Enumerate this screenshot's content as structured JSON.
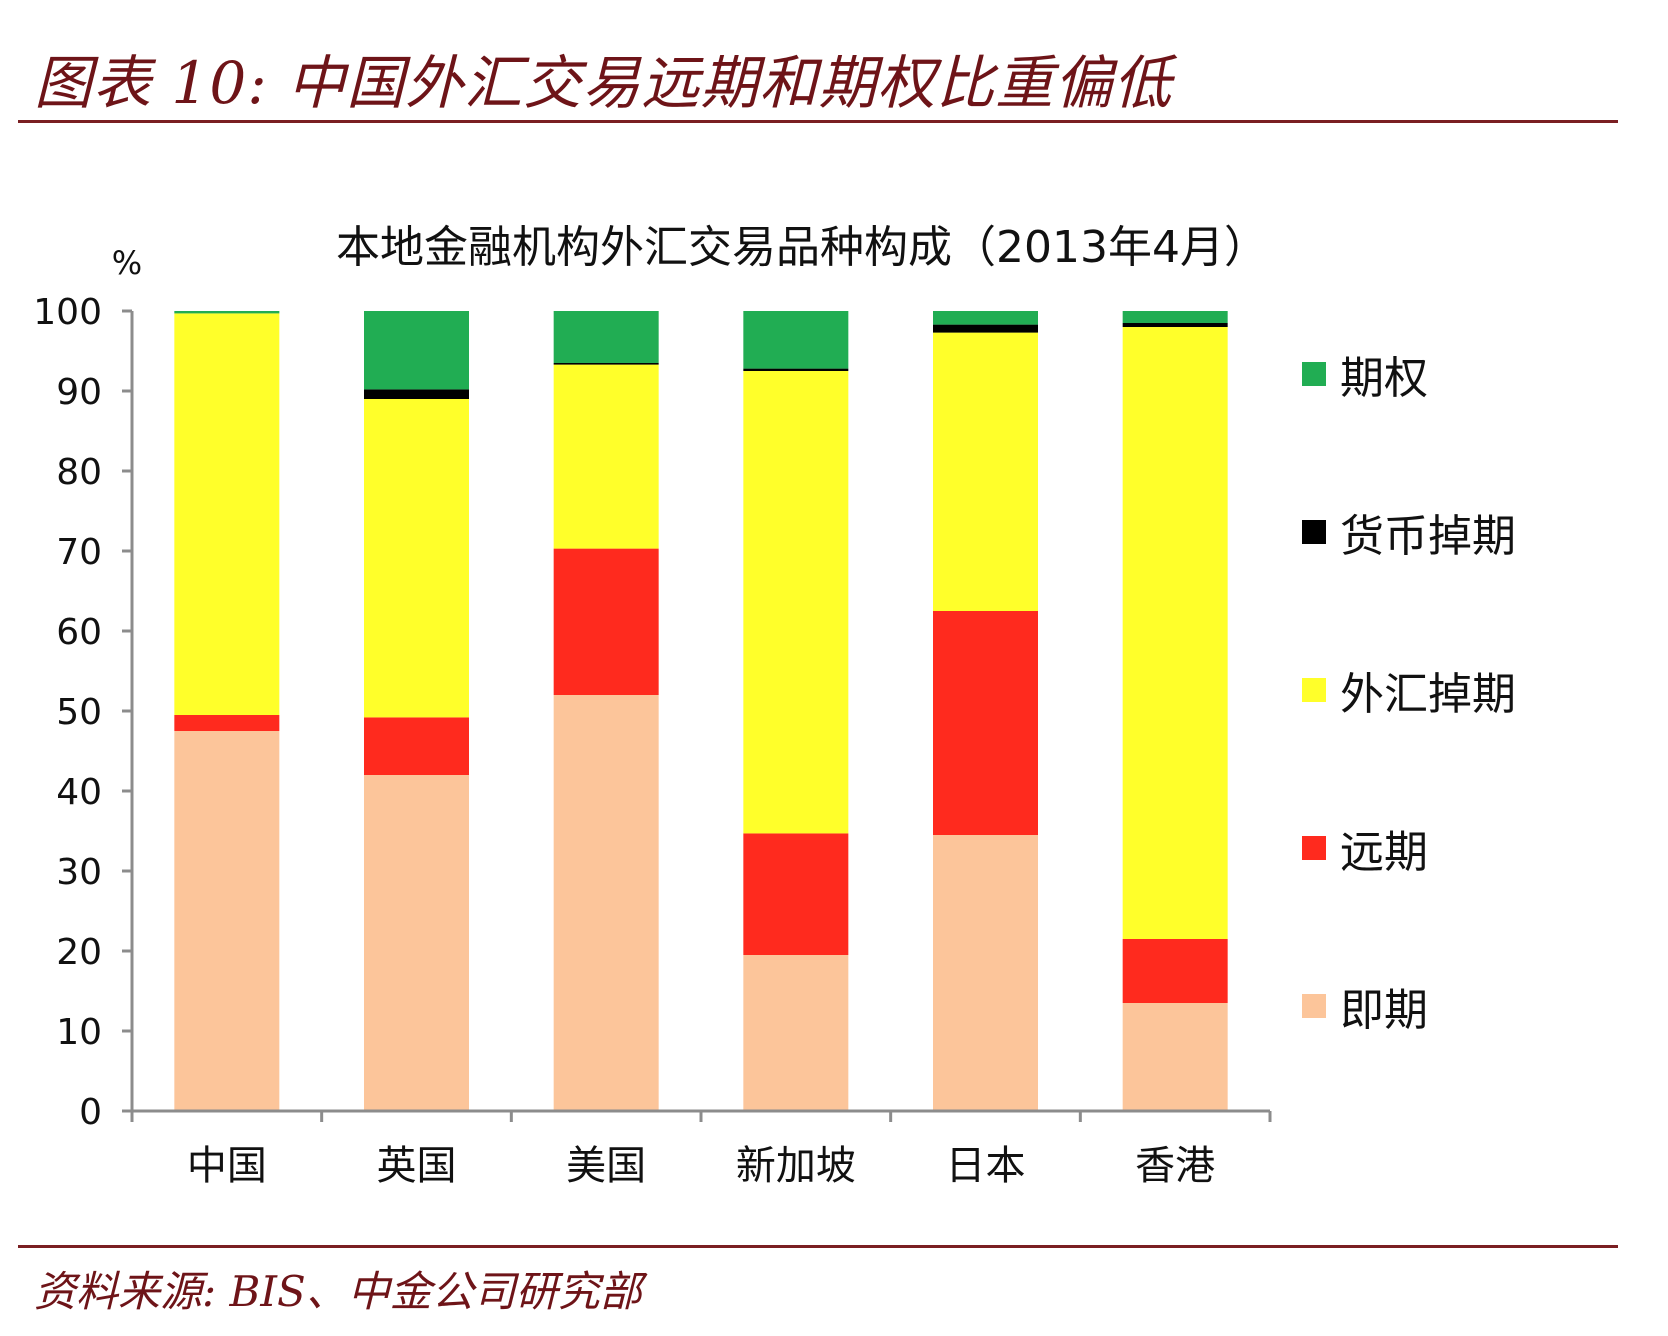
{
  "figure": {
    "title": "图表 10:  中国外汇交易远期和期权比重偏低",
    "source": "资料来源: BIS、中金公司研究部"
  },
  "chart_data": {
    "type": "bar",
    "stacked": true,
    "title": "本地金融机构外汇交易品种构成（2013年4月）",
    "ylabel": "%",
    "ylim": [
      0,
      100
    ],
    "yticks": [
      0,
      10,
      20,
      30,
      40,
      50,
      60,
      70,
      80,
      90,
      100
    ],
    "categories": [
      "中国",
      "英国",
      "美国",
      "新加坡",
      "日本",
      "香港"
    ],
    "series": [
      {
        "name": "即期",
        "color": "#fcc59a",
        "values": [
          47.5,
          42.0,
          52.0,
          19.5,
          34.5,
          13.5
        ]
      },
      {
        "name": "远期",
        "color": "#ff2a1e",
        "values": [
          2.0,
          7.2,
          18.3,
          15.2,
          28.0,
          8.0
        ]
      },
      {
        "name": "外汇掉期",
        "color": "#ffff2a",
        "values": [
          50.2,
          39.8,
          23.0,
          57.8,
          34.8,
          76.5
        ]
      },
      {
        "name": "货币掉期",
        "color": "#000000",
        "values": [
          0.0,
          1.2,
          0.2,
          0.3,
          1.0,
          0.5
        ]
      },
      {
        "name": "期权",
        "color": "#21ad53",
        "values": [
          0.3,
          9.8,
          6.5,
          7.2,
          1.7,
          1.5
        ]
      }
    ],
    "legend_order": [
      "期权",
      "货币掉期",
      "外汇掉期",
      "远期",
      "即期"
    ],
    "legend_position": "right"
  }
}
